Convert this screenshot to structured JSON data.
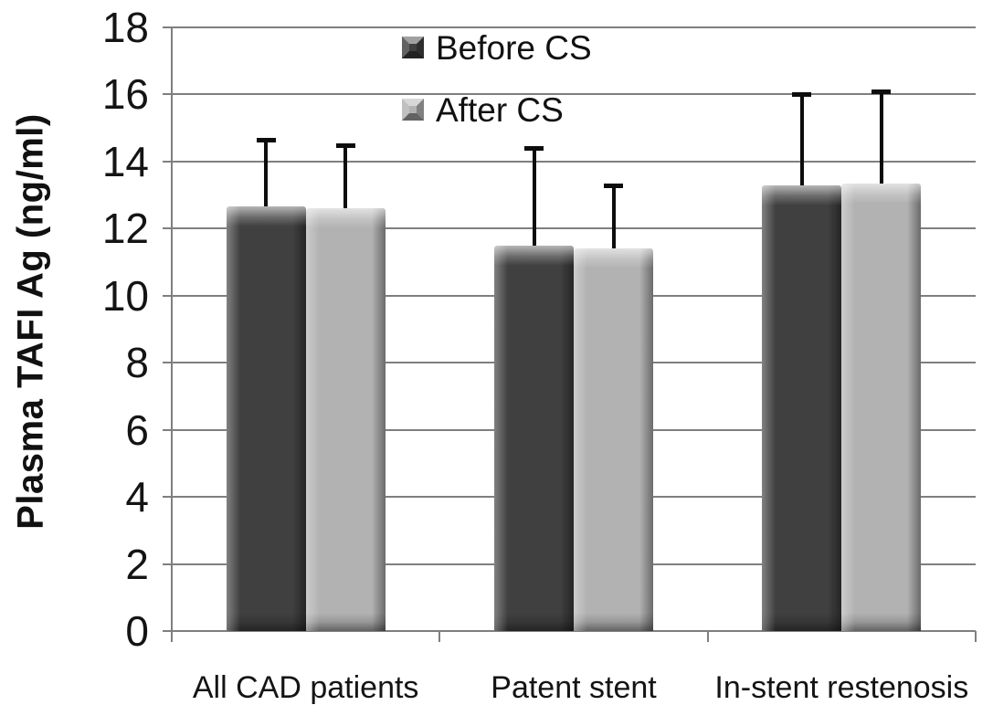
{
  "chart_data": {
    "type": "bar",
    "title": "",
    "xlabel": "",
    "ylabel": "Plasma TAFI Ag (ng/ml)",
    "ylim": [
      0,
      18
    ],
    "ytick_interval": 2,
    "ytick_labels": [
      "0",
      "2",
      "4",
      "6",
      "8",
      "10",
      "12",
      "14",
      "16",
      "18"
    ],
    "grid": true,
    "legend_position": "inside-top-center",
    "categories": [
      "All CAD patients",
      "Patent stent",
      "In-stent restenosis"
    ],
    "series": [
      {
        "name": "Before CS",
        "values": [
          12.65,
          11.5,
          13.3
        ],
        "errors_plus": [
          2.0,
          2.9,
          2.7
        ],
        "fill": "#404040"
      },
      {
        "name": "After CS",
        "values": [
          12.6,
          11.4,
          13.35
        ],
        "errors_plus": [
          1.9,
          1.9,
          2.75
        ],
        "fill": "#b2b2b2"
      }
    ],
    "colors": {
      "gridline": "#7f7f7f",
      "axis": "#7f7f7f",
      "error_bar": "#0d0d0d",
      "text": "#141414",
      "background": "#ffffff"
    }
  }
}
